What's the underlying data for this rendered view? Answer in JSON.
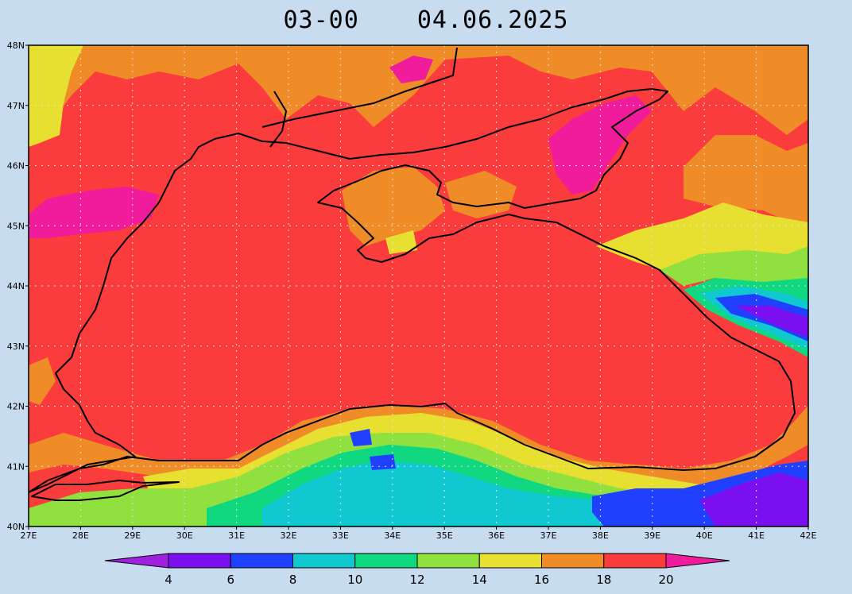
{
  "title": {
    "time": "03-00",
    "date": "04.06.2025"
  },
  "extent": {
    "lon_min": 27,
    "lon_max": 42,
    "lat_min": 40,
    "lat_max": 48
  },
  "lon_ticks": [
    "27E",
    "28E",
    "29E",
    "30E",
    "31E",
    "32E",
    "33E",
    "34E",
    "35E",
    "36E",
    "37E",
    "38E",
    "39E",
    "40E",
    "41E",
    "42E"
  ],
  "lat_ticks": [
    "40N",
    "41N",
    "42N",
    "43N",
    "44N",
    "45N",
    "46N",
    "47N",
    "48N"
  ],
  "colorbar": {
    "labels": [
      "4",
      "6",
      "8",
      "10",
      "12",
      "14",
      "16",
      "18",
      "20"
    ],
    "bins": [
      {
        "range": "<4",
        "color": "#a020e0"
      },
      {
        "range": "4-6",
        "color": "#7a10f0"
      },
      {
        "range": "6-8",
        "color": "#2040ff"
      },
      {
        "range": "8-10",
        "color": "#10c8d0"
      },
      {
        "range": "10-12",
        "color": "#10d880"
      },
      {
        "range": "12-14",
        "color": "#90e040"
      },
      {
        "range": "14-16",
        "color": "#e8e030"
      },
      {
        "range": "16-18",
        "color": "#f08c28"
      },
      {
        "range": "18-20",
        "color": "#fa3c3c"
      },
      {
        "range": ">20",
        "color": "#f01c9c"
      }
    ]
  }
}
